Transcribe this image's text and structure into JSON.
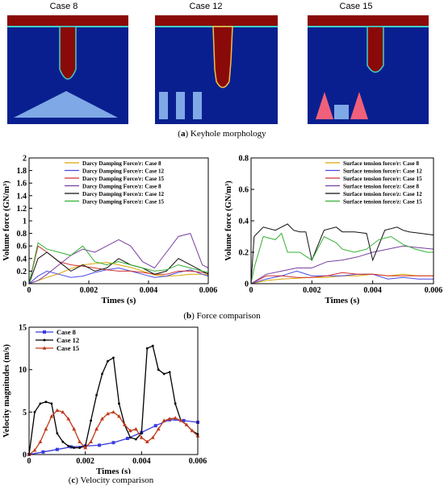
{
  "panel_a": {
    "case_titles": [
      "Case 8",
      "Case 12",
      "Case 15"
    ],
    "caption_letter": "a",
    "caption_text": "Keyhole morphology",
    "colors": {
      "field": "#0a1f8f",
      "melt": "#8a0a0a",
      "obstacle_blue": "#7fa8e6",
      "obstacle_red": "#f0607a"
    }
  },
  "panel_b_caption": {
    "letter": "b",
    "text": "Force comparison"
  },
  "panel_c_caption": {
    "letter": "c",
    "text": "Velocity comparison"
  },
  "chart_data": [
    {
      "type": "line",
      "xlabel": "Times (s)",
      "ylabel": "Volume force (GN/m³)",
      "xlim": [
        0,
        0.006
      ],
      "ylim": [
        0,
        2
      ],
      "xticks": [
        0,
        0.002,
        0.004,
        0.006
      ],
      "xtick_labels": [
        "0",
        "0.002",
        "0.004",
        "0.006"
      ],
      "yticks": [
        0,
        0.2,
        0.4,
        0.6,
        0.8,
        1,
        1.2,
        1.4,
        1.6,
        1.8,
        2
      ],
      "ytick_labels": [
        "0",
        "0.2",
        "0.4",
        "0.6",
        "0.8",
        "1",
        "1.2",
        "1.4",
        "1.6",
        "1.8",
        "2"
      ],
      "legend_position": "top-right",
      "series": [
        {
          "name": "Darcy Damping Force/r: Case 8",
          "color": "#d9a400",
          "x": [
            0,
            0.0003,
            0.0006,
            0.001,
            0.0014,
            0.0018,
            0.0022,
            0.0026,
            0.003,
            0.0034,
            0.0038,
            0.0042,
            0.0046,
            0.005,
            0.0054,
            0.0058,
            0.006
          ],
          "y": [
            0,
            0.05,
            0.1,
            0.16,
            0.24,
            0.3,
            0.32,
            0.34,
            0.3,
            0.26,
            0.2,
            0.14,
            0.12,
            0.13,
            0.15,
            0.15,
            0.14
          ]
        },
        {
          "name": "Darcy Damping Force/r: Case 12",
          "color": "#4a4ae6",
          "x": [
            0,
            0.0003,
            0.0006,
            0.001,
            0.0014,
            0.0018,
            0.0022,
            0.0026,
            0.003,
            0.0034,
            0.0038,
            0.0042,
            0.0046,
            0.005,
            0.0054,
            0.0058,
            0.006
          ],
          "y": [
            0,
            0.12,
            0.2,
            0.15,
            0.1,
            0.12,
            0.18,
            0.22,
            0.25,
            0.2,
            0.15,
            0.1,
            0.12,
            0.18,
            0.22,
            0.15,
            0.12
          ]
        },
        {
          "name": "Darcy Damping Force/r: Case 15",
          "color": "#d03030",
          "x": [
            0,
            0.0003,
            0.0006,
            0.001,
            0.0014,
            0.0018,
            0.0022,
            0.0026,
            0.003,
            0.0034,
            0.0038,
            0.0042,
            0.0046,
            0.005,
            0.0054,
            0.0058,
            0.006
          ],
          "y": [
            0,
            0.6,
            0.5,
            0.35,
            0.3,
            0.28,
            0.25,
            0.22,
            0.2,
            0.2,
            0.18,
            0.15,
            0.15,
            0.2,
            0.2,
            0.18,
            0.16
          ]
        },
        {
          "name": "Darcy Damping Force/z: Case 8",
          "color": "#7a3fa0",
          "x": [
            0,
            0.0003,
            0.0006,
            0.001,
            0.0014,
            0.0018,
            0.0022,
            0.0026,
            0.003,
            0.0034,
            0.0038,
            0.0042,
            0.0046,
            0.005,
            0.0054,
            0.0058,
            0.006
          ],
          "y": [
            0,
            0.05,
            0.15,
            0.3,
            0.45,
            0.55,
            0.5,
            0.6,
            0.7,
            0.6,
            0.35,
            0.25,
            0.5,
            0.75,
            0.8,
            0.3,
            0.25
          ]
        },
        {
          "name": "Darcy Damping Force/z: Case 12",
          "color": "#111111",
          "x": [
            0,
            0.0003,
            0.0006,
            0.001,
            0.0014,
            0.0018,
            0.0022,
            0.0026,
            0.003,
            0.0034,
            0.0038,
            0.0042,
            0.0046,
            0.005,
            0.0054,
            0.0058,
            0.006
          ],
          "y": [
            0,
            0.4,
            0.5,
            0.35,
            0.2,
            0.3,
            0.2,
            0.25,
            0.4,
            0.3,
            0.25,
            0.15,
            0.2,
            0.4,
            0.3,
            0.2,
            0.15
          ]
        },
        {
          "name": "Darcy Damping Force/z: Case 15",
          "color": "#33b033",
          "x": [
            0,
            0.0003,
            0.0006,
            0.001,
            0.0014,
            0.0018,
            0.0022,
            0.0026,
            0.003,
            0.0034,
            0.0038,
            0.0042,
            0.0046,
            0.005,
            0.0054,
            0.0058,
            0.006
          ],
          "y": [
            0,
            0.65,
            0.55,
            0.5,
            0.45,
            0.6,
            0.35,
            0.3,
            0.35,
            0.3,
            0.25,
            0.2,
            0.22,
            0.3,
            0.25,
            0.2,
            0.18
          ]
        }
      ]
    },
    {
      "type": "line",
      "xlabel": "Times (s)",
      "ylabel": "Volume force (GN/m³)",
      "xlim": [
        0,
        0.006
      ],
      "ylim": [
        0,
        0.8
      ],
      "xticks": [
        0,
        0.002,
        0.004,
        0.006
      ],
      "xtick_labels": [
        "0",
        "0.002",
        "0.004",
        "0.006"
      ],
      "yticks": [
        0,
        0.2,
        0.4,
        0.6,
        0.8
      ],
      "ytick_labels": [
        "0",
        "0.2",
        "0.4",
        "0.6",
        "0.8"
      ],
      "legend_position": "top-right",
      "series": [
        {
          "name": "Surface tension force/r: Case 8",
          "color": "#d9a400",
          "x": [
            0,
            0.0005,
            0.001,
            0.0015,
            0.002,
            0.0025,
            0.003,
            0.0035,
            0.004,
            0.0045,
            0.005,
            0.0055,
            0.006
          ],
          "y": [
            0,
            0.02,
            0.03,
            0.035,
            0.04,
            0.04,
            0.05,
            0.05,
            0.06,
            0.05,
            0.06,
            0.05,
            0.05
          ]
        },
        {
          "name": "Surface tension force/r: Case 12",
          "color": "#4a4ae6",
          "x": [
            0,
            0.0005,
            0.001,
            0.0015,
            0.002,
            0.0025,
            0.003,
            0.0035,
            0.004,
            0.0045,
            0.005,
            0.0055,
            0.006
          ],
          "y": [
            0,
            0.03,
            0.05,
            0.08,
            0.05,
            0.05,
            0.05,
            0.06,
            0.06,
            0.03,
            0.04,
            0.03,
            0.03
          ]
        },
        {
          "name": "Surface tension force/r: Case 15",
          "color": "#d03030",
          "x": [
            0,
            0.0005,
            0.001,
            0.0015,
            0.002,
            0.0025,
            0.003,
            0.0035,
            0.004,
            0.0045,
            0.005,
            0.0055,
            0.006
          ],
          "y": [
            0,
            0.05,
            0.05,
            0.04,
            0.04,
            0.05,
            0.07,
            0.06,
            0.06,
            0.05,
            0.05,
            0.05,
            0.05
          ]
        },
        {
          "name": "Surface tension force/z: Case 8",
          "color": "#7a3fa0",
          "x": [
            0,
            0.0005,
            0.001,
            0.0015,
            0.002,
            0.0025,
            0.003,
            0.0035,
            0.004,
            0.0045,
            0.005,
            0.0055,
            0.006
          ],
          "y": [
            0,
            0.06,
            0.08,
            0.1,
            0.1,
            0.14,
            0.15,
            0.17,
            0.2,
            0.22,
            0.24,
            0.23,
            0.22
          ]
        },
        {
          "name": "Surface tension force/z: Case 12",
          "color": "#111111",
          "x": [
            0,
            0.0001,
            0.0004,
            0.0008,
            0.0012,
            0.0014,
            0.0016,
            0.0018,
            0.002,
            0.0024,
            0.0028,
            0.003,
            0.0034,
            0.0038,
            0.004,
            0.0044,
            0.0048,
            0.005,
            0.0052,
            0.0056,
            0.006
          ],
          "y": [
            0,
            0.3,
            0.36,
            0.34,
            0.38,
            0.34,
            0.33,
            0.33,
            0.15,
            0.34,
            0.36,
            0.33,
            0.33,
            0.32,
            0.15,
            0.34,
            0.36,
            0.34,
            0.33,
            0.32,
            0.31
          ]
        },
        {
          "name": "Surface tension force/z: Case 15",
          "color": "#33b033",
          "x": [
            0,
            0.0001,
            0.0004,
            0.0008,
            0.001,
            0.0012,
            0.0016,
            0.002,
            0.0024,
            0.0028,
            0.003,
            0.0034,
            0.0038,
            0.0042,
            0.0046,
            0.005,
            0.0054,
            0.0058,
            0.006
          ],
          "y": [
            0,
            0.1,
            0.3,
            0.28,
            0.32,
            0.2,
            0.2,
            0.15,
            0.3,
            0.26,
            0.22,
            0.2,
            0.22,
            0.28,
            0.3,
            0.25,
            0.22,
            0.2,
            0.2
          ]
        }
      ]
    },
    {
      "type": "line",
      "xlabel": "Times (s)",
      "ylabel": "Velocity magnitudes (m/s)",
      "xlim": [
        0,
        0.006
      ],
      "ylim": [
        0,
        15
      ],
      "xticks": [
        0,
        0.002,
        0.004,
        0.006
      ],
      "xtick_labels": [
        "0",
        "0.002",
        "0.004",
        "0.006"
      ],
      "yticks": [
        0,
        5,
        10,
        15
      ],
      "ytick_labels": [
        "0",
        "5",
        "10",
        "15"
      ],
      "legend_position": "top-left",
      "series": [
        {
          "name": "Case 8",
          "color": "#3a3ae0",
          "marker": "square",
          "x": [
            0,
            0.0005,
            0.001,
            0.0015,
            0.002,
            0.0025,
            0.003,
            0.0035,
            0.004,
            0.0045,
            0.005,
            0.0055,
            0.006
          ],
          "y": [
            0,
            0.3,
            0.6,
            0.9,
            1.0,
            1.1,
            1.4,
            1.9,
            2.6,
            3.4,
            4.1,
            4.0,
            3.8
          ]
        },
        {
          "name": "Case 12",
          "color": "#000000",
          "marker": "dot",
          "x": [
            0,
            0.0002,
            0.0004,
            0.0006,
            0.0008,
            0.001,
            0.0012,
            0.0014,
            0.0016,
            0.0018,
            0.002,
            0.0022,
            0.0024,
            0.0026,
            0.0028,
            0.003,
            0.0032,
            0.0034,
            0.0036,
            0.0038,
            0.004,
            0.0042,
            0.0044,
            0.0046,
            0.0048,
            0.005,
            0.0052,
            0.0054,
            0.0056,
            0.0058,
            0.006
          ],
          "y": [
            0,
            5.0,
            6.0,
            6.2,
            6.0,
            2.5,
            1.5,
            1.0,
            0.8,
            0.8,
            1.0,
            4.0,
            7.0,
            9.5,
            11.0,
            11.4,
            6.0,
            3.5,
            2.0,
            1.8,
            2.5,
            12.5,
            12.8,
            10.0,
            9.5,
            9.7,
            6.0,
            4.0,
            3.5,
            2.8,
            2.4
          ]
        },
        {
          "name": "Case 15",
          "color": "#c03a1a",
          "marker": "triangle",
          "x": [
            0,
            0.0002,
            0.0004,
            0.0006,
            0.0008,
            0.001,
            0.0012,
            0.0014,
            0.0016,
            0.0018,
            0.002,
            0.0022,
            0.0024,
            0.0026,
            0.0028,
            0.003,
            0.0032,
            0.0034,
            0.0036,
            0.0038,
            0.004,
            0.0042,
            0.0044,
            0.0046,
            0.0048,
            0.005,
            0.0052,
            0.0054,
            0.0056,
            0.0058,
            0.006
          ],
          "y": [
            0,
            0.5,
            1.5,
            3.0,
            4.5,
            5.2,
            5.0,
            4.2,
            3.0,
            1.5,
            0.8,
            1.5,
            3.0,
            4.2,
            4.8,
            5.0,
            4.5,
            3.5,
            2.8,
            3.0,
            2.0,
            1.5,
            2.0,
            3.0,
            4.0,
            4.2,
            4.3,
            4.0,
            3.5,
            2.8,
            2.2
          ]
        }
      ]
    }
  ]
}
